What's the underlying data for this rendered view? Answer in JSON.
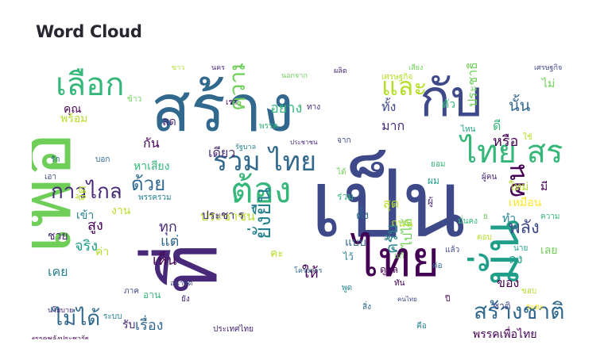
{
  "header": {
    "title": "Word Cloud"
  },
  "palette": {
    "dark_purple": "#440154",
    "purple": "#482878",
    "indigo": "#3e4989",
    "blue": "#31688e",
    "teal_blue": "#26828e",
    "teal": "#1f9e89",
    "green_teal": "#35b779",
    "green": "#6ece58",
    "lime": "#b5de2b",
    "yellow": "#fde725"
  },
  "word_cloud": {
    "words": [
      {
        "text": "เป็น",
        "color": "#3e4989",
        "weight": 100
      },
      {
        "text": "สร้าง",
        "color": "#31688e",
        "weight": 92
      },
      {
        "text": "เพื่อ",
        "color": "#6ece58",
        "weight": 90
      },
      {
        "text": "ไทย",
        "color": "#440154",
        "weight": 85
      },
      {
        "text": "ที่",
        "color": "#482878",
        "weight": 84
      },
      {
        "text": "กับ",
        "color": "#3e4989",
        "weight": 80
      },
      {
        "text": "มั่น",
        "color": "#1f9e89",
        "weight": 75
      },
      {
        "text": "ไทย สร",
        "color": "#35b779",
        "weight": 60
      },
      {
        "text": "เลือก",
        "color": "#35b779",
        "weight": 55
      },
      {
        "text": "รวม ไทย",
        "color": "#31688e",
        "weight": 50
      },
      {
        "text": "ต้อง",
        "color": "#35b779",
        "weight": 48
      },
      {
        "text": "และ",
        "color": "#b5de2b",
        "weight": 45
      },
      {
        "text": "สร้างชาติ",
        "color": "#31688e",
        "weight": 40
      },
      {
        "text": "กาวไกล",
        "color": "#482878",
        "weight": 38
      },
      {
        "text": "ด้วย",
        "color": "#31688e",
        "weight": 34
      },
      {
        "text": "ความ",
        "color": "#6ece58",
        "weight": 36
      },
      {
        "text": "คน",
        "color": "#440154",
        "weight": 34
      },
      {
        "text": "ไม่ได้",
        "color": "#31688e",
        "weight": 34
      },
      {
        "text": "พลัง",
        "color": "#3e4989",
        "weight": 32
      },
      {
        "text": "ยั่งยืน",
        "color": "#26828e",
        "weight": 32
      },
      {
        "text": "ประชาชน",
        "color": "#b5de2b",
        "weight": 28
      },
      {
        "text": "ประชาธิปไตย",
        "color": "#6ece58",
        "weight": 22
      },
      {
        "text": "อยาง",
        "color": "#35b779",
        "weight": 24
      },
      {
        "text": "มาก",
        "color": "#482878",
        "weight": 22
      },
      {
        "text": "ทั้ง",
        "color": "#3e4989",
        "weight": 22
      },
      {
        "text": "นั้น",
        "color": "#31688e",
        "weight": 22
      },
      {
        "text": "ให้",
        "color": "#440154",
        "weight": 22
      },
      {
        "text": "เรื่อง",
        "color": "#31688e",
        "weight": 20
      },
      {
        "text": "เข้า",
        "color": "#26828e",
        "weight": 18
      },
      {
        "text": "เห็น",
        "color": "#440154",
        "weight": 18
      },
      {
        "text": "ประชา ร",
        "color": "#482878",
        "weight": 18
      },
      {
        "text": "แต่",
        "color": "#31688e",
        "weight": 18
      },
      {
        "text": "สูง",
        "color": "#440154",
        "weight": 18
      },
      {
        "text": "ของ",
        "color": "#440154",
        "weight": 18
      },
      {
        "text": "ลง",
        "color": "#1f9e89",
        "weight": 16
      },
      {
        "text": "พรรคเพื่อไทย",
        "color": "#440154",
        "weight": 16
      },
      {
        "text": "ไปได้",
        "color": "#6ece58",
        "weight": 14
      },
      {
        "text": "คุณ",
        "color": "#440154",
        "weight": 14
      },
      {
        "text": "หาเสียง",
        "color": "#35b779",
        "weight": 14
      },
      {
        "text": "ชวย",
        "color": "#482878",
        "weight": 14
      },
      {
        "text": "ถนน",
        "color": "#b5de2b",
        "weight": 14
      },
      {
        "text": "เหมือน",
        "color": "#fde725",
        "weight": 14
      },
      {
        "text": "แบบ",
        "color": "#31688e",
        "weight": 14
      },
      {
        "text": "สุด",
        "color": "#b5de2b",
        "weight": 14
      },
      {
        "text": "ไม่",
        "color": "#6ece58",
        "weight": 14
      },
      {
        "text": "เลย",
        "color": "#6ece58",
        "weight": 14
      },
      {
        "text": "ดูแล",
        "color": "#440154",
        "weight": 12
      },
      {
        "text": "ประชาชน",
        "color": "#482878",
        "weight": 10
      },
      {
        "text": "ประเทศไทย",
        "color": "#482878",
        "weight": 10
      },
      {
        "text": "พรรคพลังประชารัฐ",
        "color": "#440154",
        "weight": 8
      },
      {
        "text": "นโยบาย",
        "color": "#482878",
        "weight": 8
      },
      {
        "text": "อนาคต",
        "color": "#3e4989",
        "weight": 8
      },
      {
        "text": "รัฐบาล",
        "color": "#26828e",
        "weight": 8
      },
      {
        "text": "ผลิต",
        "color": "#482878",
        "weight": 8
      },
      {
        "text": "นอกจาก",
        "color": "#6ece58",
        "weight": 8
      },
      {
        "text": "เศรษฐกิจ",
        "color": "#3e4989",
        "weight": 8
      },
      {
        "text": "เสียง",
        "color": "#6ece58",
        "weight": 8
      },
      {
        "text": "ขาว",
        "color": "#b5de2b",
        "weight": 8
      },
      {
        "text": "นคร",
        "color": "#482878",
        "weight": 8
      },
      {
        "text": "โครงการ",
        "color": "#31688e",
        "weight": 8
      },
      {
        "text": "ระบบ",
        "color": "#26828e",
        "weight": 8
      },
      {
        "text": "ตอบ",
        "color": "#b5de2b",
        "weight": 8
      },
      {
        "text": "เรา",
        "color": "#440154",
        "weight": 8
      },
      {
        "text": "เดียว",
        "color": "#482878",
        "weight": 10
      },
      {
        "text": "จาก",
        "color": "#3e4989",
        "weight": 8
      },
      {
        "text": "ตัว",
        "color": "#35b779",
        "weight": 12
      },
      {
        "text": "ทำ",
        "color": "#26828e",
        "weight": 12
      },
      {
        "text": "ใหม่",
        "color": "#b5de2b",
        "weight": 12
      },
      {
        "text": "หรือ",
        "color": "#440154",
        "weight": 14
      },
      {
        "text": "คนไทย",
        "color": "#3e4989",
        "weight": 8
      },
      {
        "text": "พรรครวม",
        "color": "#26828e",
        "weight": 8
      },
      {
        "text": "พร้อม",
        "color": "#b5de2b",
        "weight": 10
      },
      {
        "text": "บอก",
        "color": "#31688e",
        "weight": 8
      },
      {
        "text": "เอา",
        "color": "#3e4989",
        "weight": 8
      },
      {
        "text": "จริง",
        "color": "#1f9e89",
        "weight": 12
      },
      {
        "text": "เคย",
        "color": "#26828e",
        "weight": 12
      },
      {
        "text": "อาน",
        "color": "#35b779",
        "weight": 10
      },
      {
        "text": "รับ",
        "color": "#482878",
        "weight": 10
      },
      {
        "text": "จัด",
        "color": "#b5de2b",
        "weight": 12
      },
      {
        "text": "งาน",
        "color": "#b5de2b",
        "weight": 12
      },
      {
        "text": "ลด",
        "color": "#482878",
        "weight": 12
      },
      {
        "text": "มี",
        "color": "#440154",
        "weight": 12
      },
      {
        "text": "ตั้ง",
        "color": "#31688e",
        "weight": 12
      },
      {
        "text": "ทุก",
        "color": "#482878",
        "weight": 16
      },
      {
        "text": "ครับ",
        "color": "#26828e",
        "weight": 16
      },
      {
        "text": "คะ",
        "color": "#b5de2b",
        "weight": 12
      },
      {
        "text": "ดี",
        "color": "#35b779",
        "weight": 14
      },
      {
        "text": "ค่า",
        "color": "#b5de2b",
        "weight": 14
      },
      {
        "text": "กัน",
        "color": "#440154",
        "weight": 12
      },
      {
        "text": "ชาติ",
        "color": "#3e4989",
        "weight": 12
      },
      {
        "text": "ผม",
        "color": "#1f9e89",
        "weight": 10
      },
      {
        "text": "ไว้",
        "color": "#26828e",
        "weight": 10
      },
      {
        "text": "ผู้",
        "color": "#482878",
        "weight": 10
      },
      {
        "text": "ร่วม",
        "color": "#35b779",
        "weight": 10
      },
      {
        "text": "ปี",
        "color": "#440154",
        "weight": 8
      },
      {
        "text": "ใช้",
        "color": "#b5de2b",
        "weight": 8
      },
      {
        "text": "ได้",
        "color": "#6ece58",
        "weight": 8
      },
      {
        "text": "รัก",
        "color": "#31688e",
        "weight": 8
      },
      {
        "text": "ระยะ",
        "color": "#fde725",
        "weight": 8
      },
      {
        "text": "พูด",
        "color": "#26828e",
        "weight": 8
      },
      {
        "text": "ไหน",
        "color": "#1f9e89",
        "weight": 8
      },
      {
        "text": "ยอม",
        "color": "#35b779",
        "weight": 8
      },
      {
        "text": "แก้",
        "color": "#6ece58",
        "weight": 8
      },
      {
        "text": "ต่อ",
        "color": "#31688e",
        "weight": 8
      },
      {
        "text": "แล้ว",
        "color": "#3e4989",
        "weight": 8
      },
      {
        "text": "ยัง",
        "color": "#482878",
        "weight": 8
      },
      {
        "text": "ขอบ",
        "color": "#b5de2b",
        "weight": 8
      },
      {
        "text": "ย",
        "color": "#6ece58",
        "weight": 8
      },
      {
        "text": "ความ",
        "color": "#35b779",
        "weight": 8
      },
      {
        "text": "ข้าว",
        "color": "#6ece58",
        "weight": 8
      },
      {
        "text": "เศรษฐกิจ",
        "color": "#b5de2b",
        "weight": 8
      },
      {
        "text": "พรรค",
        "color": "#35b779",
        "weight": 8
      },
      {
        "text": "ทาง",
        "color": "#482878",
        "weight": 8
      },
      {
        "text": "ภาค",
        "color": "#3e4989",
        "weight": 8
      },
      {
        "text": "นาย",
        "color": "#1f9e89",
        "weight": 8
      },
      {
        "text": "สิ่ง",
        "color": "#31688e",
        "weight": 8
      },
      {
        "text": "คือ",
        "color": "#26828e",
        "weight": 8
      },
      {
        "text": "ผู้คน",
        "color": "#482878",
        "weight": 8
      },
      {
        "text": "ทัน",
        "color": "#440154",
        "weight": 8
      },
      {
        "text": "มั่นคง",
        "color": "#35b779",
        "weight": 8
      }
    ]
  }
}
